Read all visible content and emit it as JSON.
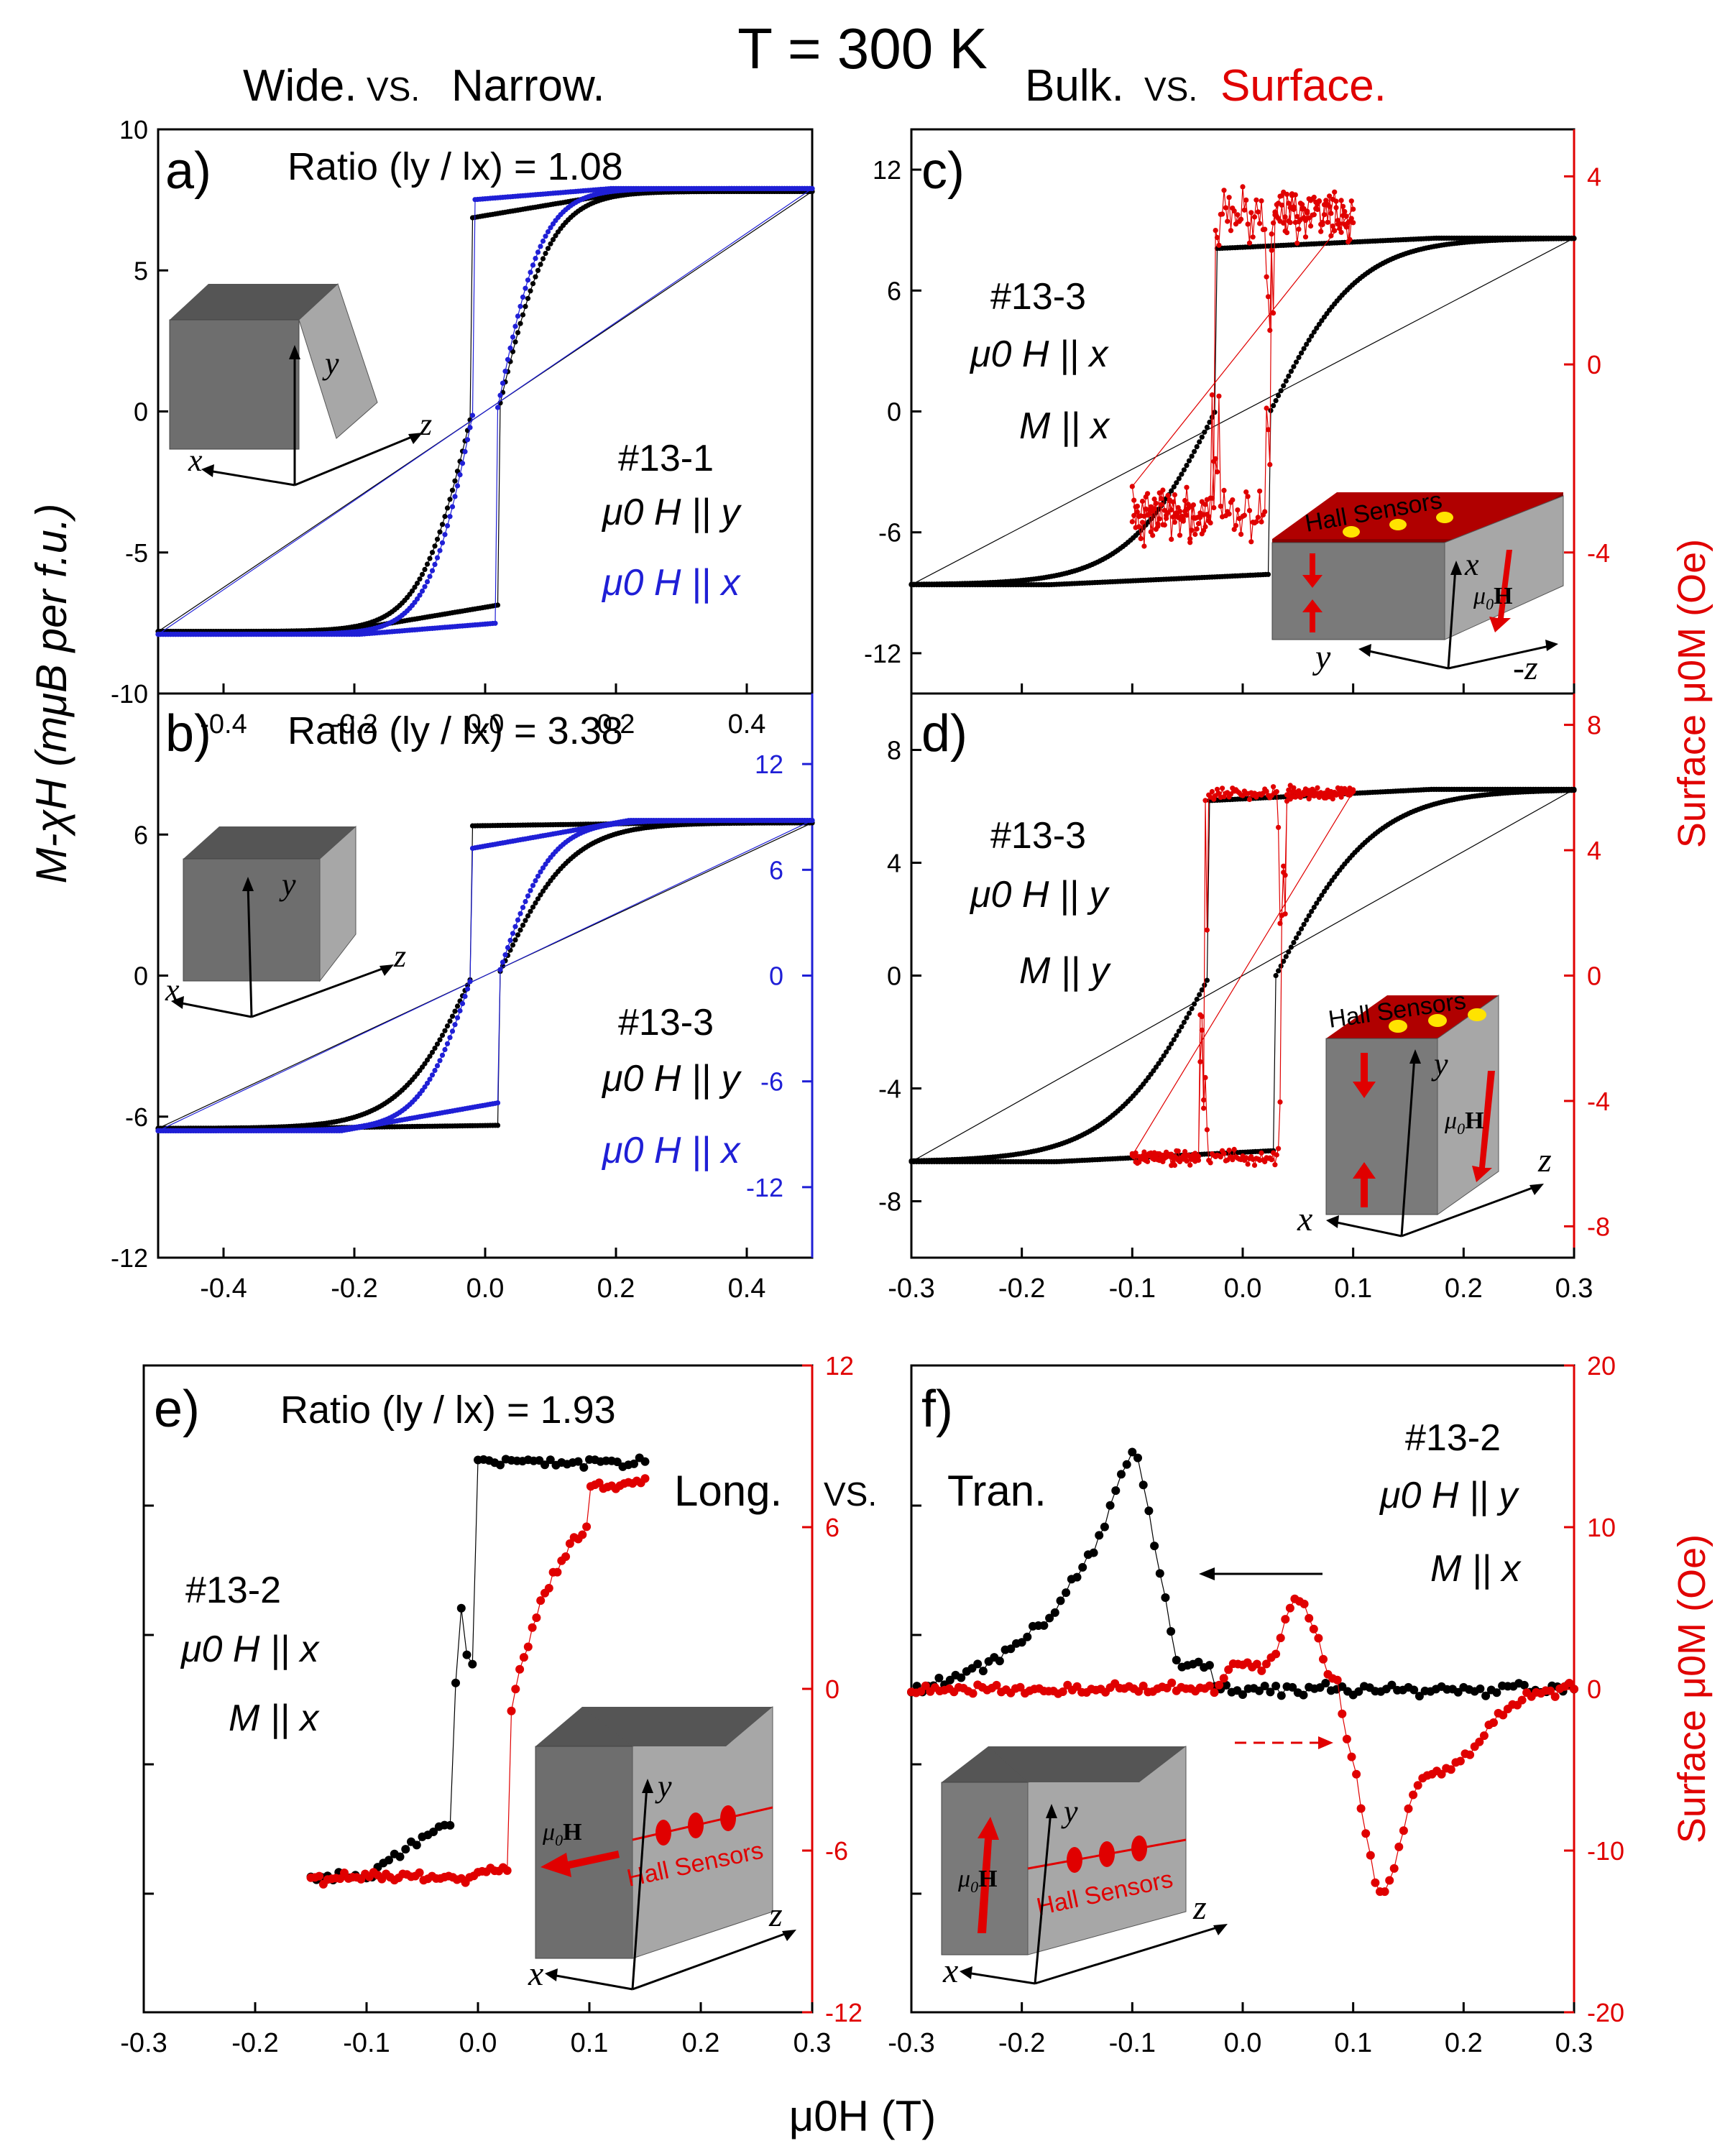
{
  "header": {
    "temperature": "T = 300 K",
    "left_title_a": "Wide.",
    "left_title_vs": "VS.",
    "left_title_b": "Narrow.",
    "right_title_a": "Bulk.",
    "right_title_vs": "VS.",
    "right_title_b": "Surface.",
    "mid_title_a": "Long.",
    "mid_title_vs": "VS.",
    "mid_title_b": "Tran."
  },
  "axes_labels": {
    "ylabel_left": "M-χH (mμB per f.u.)",
    "ylabel_right": "Surface μ0M (Oe)",
    "xlabel": "μ0H (T)"
  },
  "colors": {
    "black": "#000000",
    "blue": "#1f1fd6",
    "red": "#e00000",
    "dark_box": "#555555",
    "light_box": "#a7a7a7"
  },
  "chart_data": [
    {
      "panel": "a)",
      "type": "scatter",
      "title": "Ratio (ly / lx) = 1.08",
      "sample": [
        "#13-1",
        "μ0 H || y",
        "μ0 H || x"
      ],
      "xlim": [
        -0.5,
        0.5
      ],
      "ylim": [
        -10,
        10
      ],
      "xticks": [
        -0.4,
        -0.2,
        0.0,
        0.2,
        0.4
      ],
      "yticks": [
        -10,
        -5,
        0,
        5,
        10
      ],
      "series": [
        {
          "name": "μ0 H || y",
          "color": "#000000",
          "kind": "sharp",
          "Ms": 7.8,
          "Hc": 0.02,
          "w": 0.08,
          "jump": 0.88,
          "y": "left"
        },
        {
          "name": "μ0 H || x",
          "color": "#1f1fd6",
          "kind": "sharp",
          "Ms": 7.9,
          "Hc": 0.018,
          "w": 0.07,
          "jump": 0.95,
          "y": "left"
        }
      ]
    },
    {
      "panel": "b)",
      "type": "scatter",
      "title": "Ratio (ly / lx) = 3.38",
      "sample": [
        "#13-3",
        "μ0 H || y",
        "μ0 H || x"
      ],
      "xlim": [
        -0.5,
        0.5
      ],
      "ylim": [
        -12,
        12
      ],
      "ylim_right": [
        -16,
        16
      ],
      "xticks": [
        -0.4,
        -0.2,
        0.0,
        0.2,
        0.4
      ],
      "yticks": [
        -12,
        -6,
        0,
        6
      ],
      "yticks_right": [
        -12,
        -6,
        0,
        6,
        12
      ],
      "series": [
        {
          "name": "μ0 H || y",
          "color": "#000000",
          "kind": "soft",
          "Ms": 6.5,
          "Hc": 0.02,
          "w": 0.11,
          "jump": 0.98,
          "y": "left"
        },
        {
          "name": "μ0 H || x",
          "color": "#1f1fd6",
          "kind": "soft",
          "Ms": 8.8,
          "Hc": 0.02,
          "w": 0.08,
          "jump": 0.82,
          "y": "right"
        }
      ]
    },
    {
      "panel": "c)",
      "type": "scatter",
      "sample": [
        "#13-3",
        "μ0 H || x",
        "M || x"
      ],
      "inset_label": "Hall Sensors",
      "xlim": [
        -0.3,
        0.3
      ],
      "ylim": [
        -14,
        14
      ],
      "ylim_right": [
        -7,
        5
      ],
      "yticks": [
        -12,
        -6,
        0,
        6,
        12
      ],
      "yticks_right": [
        -4,
        0,
        4
      ],
      "series": [
        {
          "name": "bulk",
          "color": "#000000",
          "kind": "bulk",
          "Ms": 8.6,
          "Hc": 0.025,
          "w": 0.08,
          "jump": 0.94,
          "y": "left"
        },
        {
          "name": "surface",
          "color": "#e00000",
          "kind": "square",
          "Ms": 3.2,
          "Hc": 0.025,
          "range": 0.1,
          "noise": 0.35,
          "y": "right"
        }
      ]
    },
    {
      "panel": "d)",
      "type": "scatter",
      "sample": [
        "#13-3",
        "μ0 H || y",
        "M || y"
      ],
      "inset_label": "Hall Sensors",
      "xlim": [
        -0.3,
        0.3
      ],
      "ylim": [
        -10,
        10
      ],
      "ylim_right": [
        -9,
        9
      ],
      "xticks": [
        -0.3,
        -0.2,
        -0.1,
        0.0,
        0.1,
        0.2,
        0.3
      ],
      "yticks": [
        -8,
        -4,
        0,
        4,
        8
      ],
      "yticks_right": [
        -8,
        -4,
        0,
        4,
        8
      ],
      "series": [
        {
          "name": "bulk",
          "color": "#000000",
          "kind": "bulk",
          "Ms": 6.6,
          "Hc": 0.03,
          "w": 0.09,
          "jump": 0.94,
          "y": "left"
        },
        {
          "name": "surface",
          "color": "#e00000",
          "kind": "square",
          "Ms": 5.8,
          "Hc": 0.035,
          "range": 0.1,
          "noise": 0.25,
          "y": "right"
        }
      ]
    },
    {
      "panel": "e)",
      "type": "scatter",
      "title": "Ratio (ly / lx) = 1.93",
      "sample": [
        "#13-2",
        "μ0 H || x",
        "M || x"
      ],
      "inset_label": "Hall Sensors",
      "xlim": [
        -0.3,
        0.3
      ],
      "ylim_right": [
        -12,
        12
      ],
      "xticks": [
        -0.3,
        -0.2,
        -0.1,
        0.0,
        0.1,
        0.2,
        0.3
      ],
      "yticks_right": [
        -12,
        -6,
        0,
        6,
        12
      ],
      "series": [
        {
          "name": "longitudinal",
          "color": "#000000",
          "kind": "e_black",
          "y": "right"
        },
        {
          "name": "surface",
          "color": "#e00000",
          "kind": "e_red",
          "y": "right"
        }
      ]
    },
    {
      "panel": "f)",
      "type": "scatter",
      "sample": [
        "#13-2",
        "μ0 H || y",
        "M || x"
      ],
      "inset_label": "Hall Sensors",
      "xlim": [
        -0.3,
        0.3
      ],
      "ylim_right": [
        -20,
        20
      ],
      "xticks": [
        -0.3,
        -0.2,
        -0.1,
        0.0,
        0.1,
        0.2,
        0.3
      ],
      "yticks_right": [
        -20,
        -10,
        0,
        10,
        20
      ],
      "series": [
        {
          "name": "transverse down",
          "color": "#000000",
          "kind": "f_black",
          "y": "right"
        },
        {
          "name": "surface",
          "color": "#e00000",
          "kind": "f_red",
          "y": "right"
        }
      ]
    }
  ]
}
